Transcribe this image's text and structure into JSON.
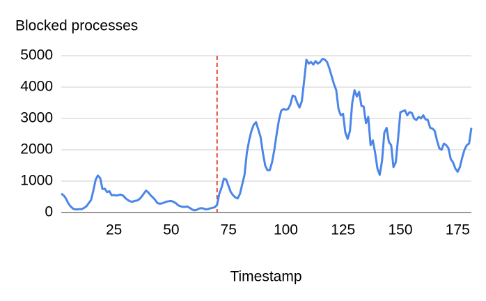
{
  "chart_data": {
    "type": "line",
    "title": "Blocked processes",
    "x_label": "Timestamp",
    "x": [
      2,
      3,
      4,
      5,
      6,
      7,
      8,
      9,
      10,
      11,
      12,
      13,
      14,
      15,
      16,
      17,
      18,
      19,
      20,
      21,
      22,
      23,
      24,
      25,
      26,
      27,
      28,
      29,
      30,
      31,
      32,
      33,
      34,
      35,
      36,
      37,
      38,
      39,
      40,
      41,
      42,
      43,
      44,
      45,
      46,
      47,
      48,
      49,
      50,
      51,
      52,
      53,
      54,
      55,
      56,
      57,
      58,
      59,
      60,
      61,
      62,
      63,
      64,
      65,
      66,
      67,
      68,
      69,
      70,
      71,
      72,
      73,
      74,
      75,
      76,
      77,
      78,
      79,
      80,
      81,
      82,
      83,
      84,
      85,
      86,
      87,
      88,
      89,
      90,
      91,
      92,
      93,
      94,
      95,
      96,
      97,
      98,
      99,
      100,
      101,
      102,
      103,
      104,
      105,
      106,
      107,
      108,
      109,
      110,
      111,
      112,
      113,
      114,
      115,
      116,
      117,
      118,
      119,
      120,
      121,
      122,
      123,
      124,
      125,
      126,
      127,
      128,
      129,
      130,
      131,
      132,
      133,
      134,
      135,
      136,
      137,
      138,
      139,
      140,
      141,
      142,
      143,
      144,
      145,
      146,
      147,
      148,
      149,
      150,
      151,
      152,
      153,
      154,
      155,
      156,
      157,
      158,
      159,
      160,
      161,
      162,
      163,
      164,
      165,
      166,
      167,
      168,
      169,
      170,
      171,
      172,
      173,
      174,
      175,
      176,
      177,
      178,
      179,
      180,
      181
    ],
    "series": [
      {
        "name": "Blocked processes",
        "color": "#4a86e8",
        "values": [
          600,
          550,
          450,
          300,
          200,
          130,
          100,
          100,
          110,
          110,
          150,
          200,
          300,
          400,
          700,
          1050,
          1180,
          1100,
          750,
          760,
          650,
          680,
          550,
          560,
          540,
          560,
          570,
          540,
          460,
          400,
          360,
          340,
          370,
          380,
          420,
          500,
          600,
          700,
          640,
          550,
          480,
          400,
          300,
          280,
          290,
          320,
          350,
          360,
          370,
          340,
          300,
          230,
          200,
          180,
          180,
          190,
          150,
          100,
          70,
          80,
          120,
          140,
          130,
          100,
          110,
          130,
          150,
          170,
          250,
          600,
          800,
          1080,
          1050,
          850,
          650,
          550,
          480,
          450,
          600,
          900,
          1200,
          1900,
          2300,
          2600,
          2800,
          2880,
          2650,
          2400,
          1900,
          1500,
          1350,
          1350,
          1600,
          2000,
          2500,
          2950,
          3250,
          3300,
          3280,
          3300,
          3450,
          3730,
          3700,
          3500,
          3350,
          3550,
          4200,
          4870,
          4750,
          4800,
          4720,
          4830,
          4750,
          4800,
          4900,
          4880,
          4800,
          4600,
          4350,
          4100,
          3900,
          3300,
          3100,
          3150,
          2550,
          2350,
          2600,
          3500,
          3900,
          3700,
          3850,
          3400,
          3380,
          2850,
          3050,
          2150,
          2300,
          1900,
          1400,
          1200,
          1650,
          2550,
          2700,
          2250,
          2150,
          1450,
          1600,
          2350,
          3200,
          3230,
          3260,
          3100,
          3200,
          3180,
          3000,
          2950,
          3050,
          3000,
          3100,
          2970,
          2950,
          2700,
          2680,
          2600,
          2300,
          2050,
          2000,
          2200,
          2150,
          2050,
          1700,
          1600,
          1400,
          1300,
          1450,
          1750,
          2000,
          2150,
          2200,
          2700
        ]
      }
    ],
    "xlim": [
      2,
      181
    ],
    "xticks": [
      25,
      50,
      75,
      100,
      125,
      150,
      175
    ],
    "ylim": [
      0,
      5000
    ],
    "yticks": [
      0,
      1000,
      2000,
      3000,
      4000,
      5000
    ],
    "grid": true,
    "vline": {
      "x": 70,
      "color": "#ea4335"
    }
  }
}
